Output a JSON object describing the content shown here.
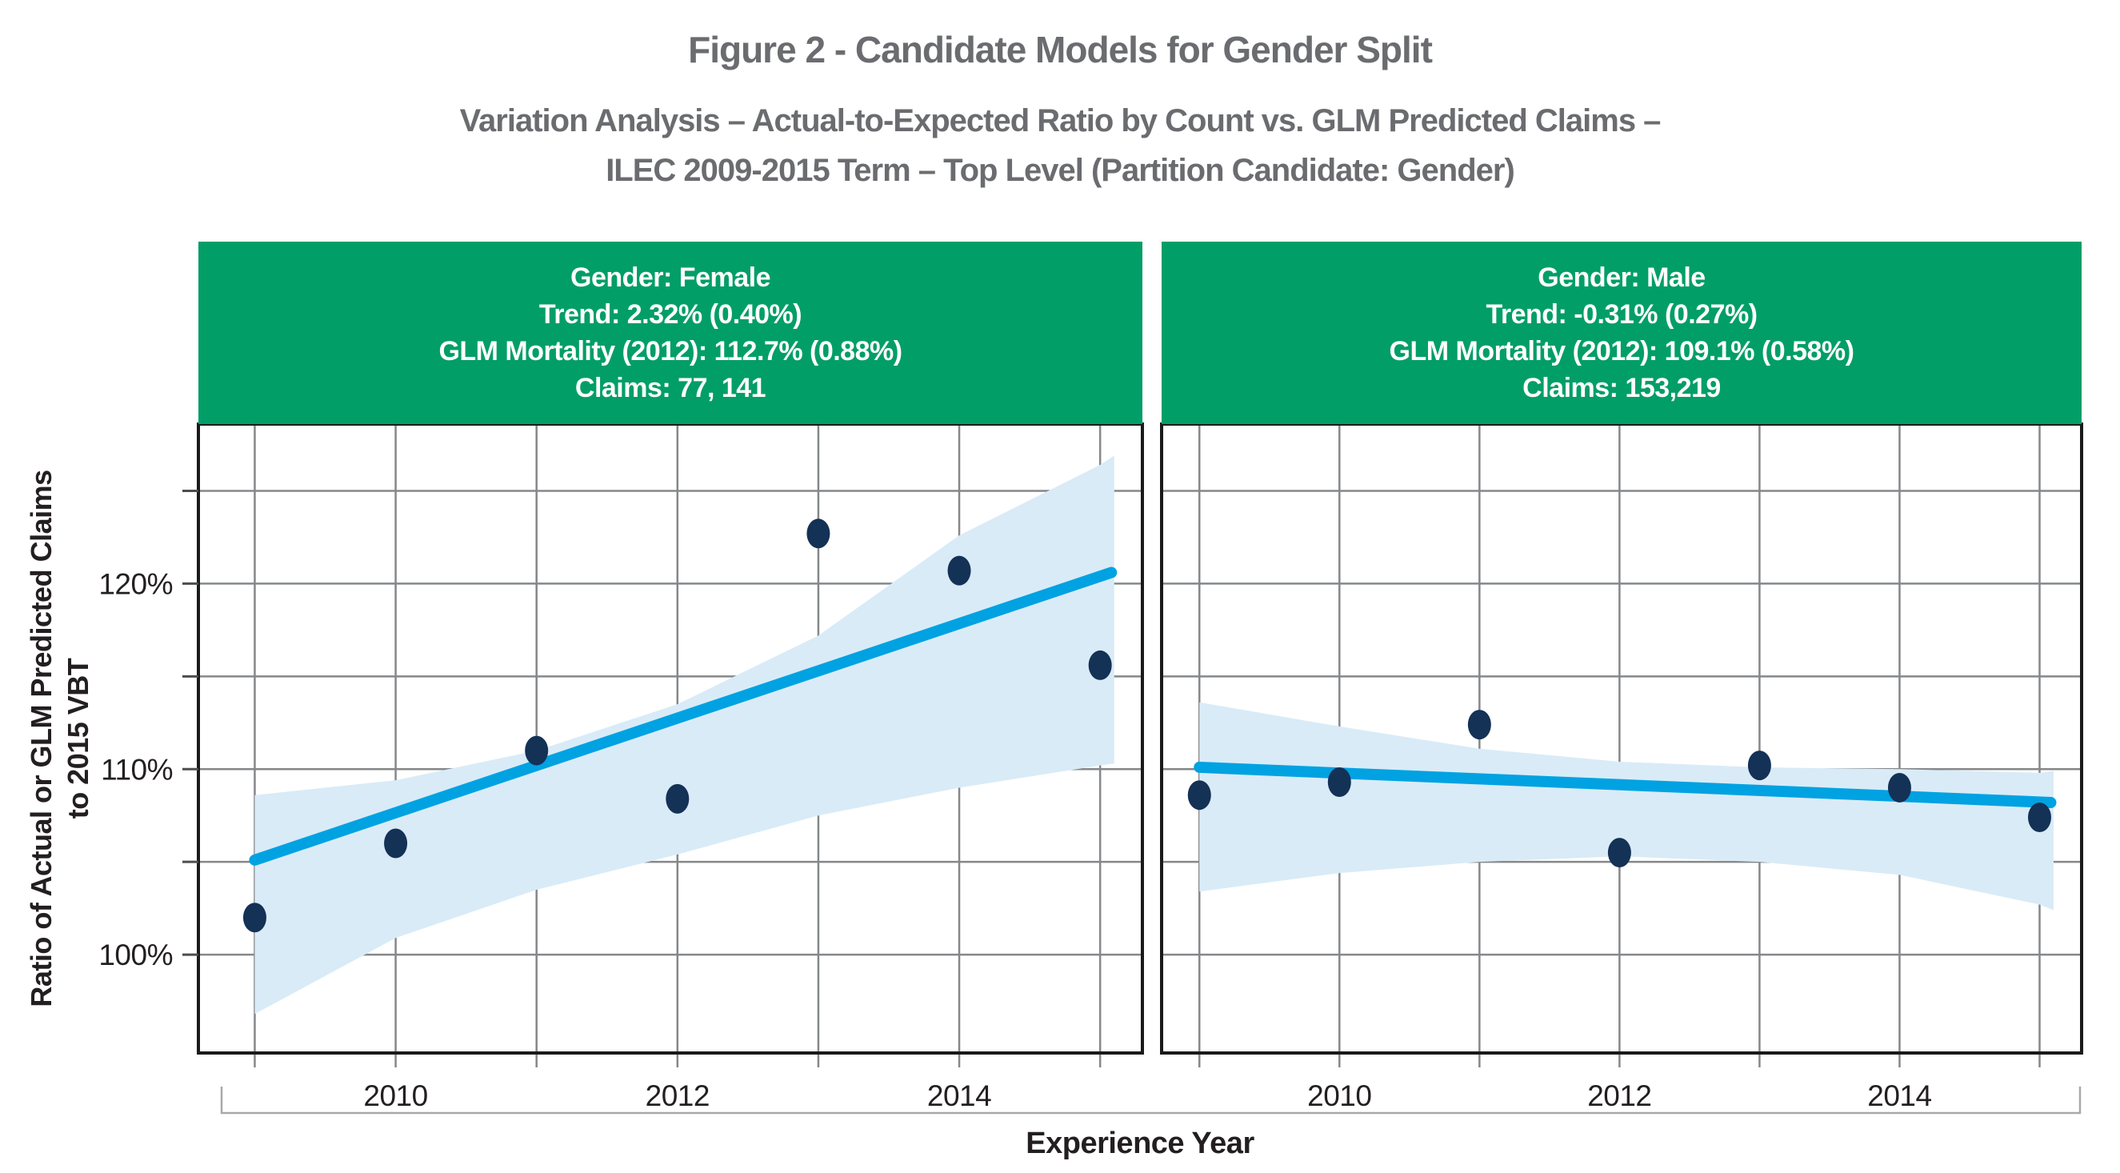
{
  "figure": {
    "title": "Figure 2 - Candidate Models for Gender Split",
    "subtitle_lines": [
      "Variation Analysis – Actual-to-Expected Ratio by Count vs. GLM Predicted Claims –",
      "ILEC 2009-2015 Term – Top Level (Partition Candidate: Gender)"
    ]
  },
  "colors": {
    "header_green": "#029E68",
    "trend_blue": "#00A2E2",
    "band_blue": "#D9EBF7",
    "point_navy": "#143156",
    "grid_gray": "#85878A",
    "border_black": "#1A1A1A",
    "text_dark": "#231F20",
    "title_gray": "#6B6C6F",
    "bracket_gray": "#A7A9AB"
  },
  "chart_data": {
    "type": "scatter",
    "title": "Figure 2 - Candidate Models for Gender Split",
    "xlabel": "Experience Year",
    "ylabel_lines": [
      "Ratio of Actual or GLM Predicted Claims",
      "to 2015 VBT"
    ],
    "xlim": [
      2008.6,
      2015.3
    ],
    "ylim": [
      94.7,
      128.6
    ],
    "grid": true,
    "x_years": [
      2009,
      2010,
      2011,
      2012,
      2013,
      2014,
      2015
    ],
    "x_tick_labels": [
      {
        "year": 2010,
        "label": "2010"
      },
      {
        "year": 2012,
        "label": "2012"
      },
      {
        "year": 2014,
        "label": "2014"
      }
    ],
    "y_gridlines": [
      100,
      105,
      110,
      115,
      120,
      125
    ],
    "y_tick_labels": [
      {
        "value": 100,
        "label": "100%"
      },
      {
        "value": 110,
        "label": "110%"
      },
      {
        "value": 120,
        "label": "120%"
      }
    ],
    "panels": [
      {
        "id": "female",
        "header_lines": [
          "Gender: Female",
          "Trend: 2.32% (0.40%)",
          "GLM Mortality (2012): 112.7% (0.88%)",
          "Claims: 77, 141"
        ],
        "points": {
          "years": [
            2009,
            2010,
            2011,
            2012,
            2013,
            2014,
            2015
          ],
          "values": [
            102.0,
            106.0,
            111.0,
            108.4,
            122.7,
            120.7,
            115.6
          ]
        },
        "trend": {
          "years": [
            2009,
            2015.08
          ],
          "values": [
            105.1,
            120.6
          ]
        },
        "band": {
          "years": [
            2009,
            2010,
            2011,
            2012,
            2013,
            2014,
            2015,
            2015.1
          ],
          "upper": [
            108.6,
            109.4,
            111.0,
            113.5,
            117.2,
            122.6,
            126.4,
            126.9
          ],
          "lower": [
            96.8,
            100.9,
            103.5,
            105.4,
            107.5,
            109.0,
            110.2,
            110.3
          ]
        }
      },
      {
        "id": "male",
        "header_lines": [
          "Gender: Male",
          "Trend: -0.31% (0.27%)",
          "GLM Mortality (2012): 109.1% (0.58%)",
          "Claims: 153,219"
        ],
        "points": {
          "years": [
            2009,
            2010,
            2011,
            2012,
            2013,
            2014,
            2015
          ],
          "values": [
            108.6,
            109.3,
            112.4,
            105.5,
            110.2,
            109.0,
            107.4
          ]
        },
        "trend": {
          "years": [
            2009,
            2015.08
          ],
          "values": [
            110.1,
            108.2
          ]
        },
        "band": {
          "years": [
            2009,
            2010,
            2011,
            2012,
            2013,
            2014,
            2015,
            2015.1
          ],
          "upper": [
            113.6,
            112.3,
            111.1,
            110.4,
            110.1,
            110.0,
            109.8,
            109.9
          ],
          "lower": [
            103.4,
            104.4,
            105.0,
            105.3,
            105.0,
            104.3,
            102.7,
            102.4
          ]
        }
      }
    ]
  }
}
